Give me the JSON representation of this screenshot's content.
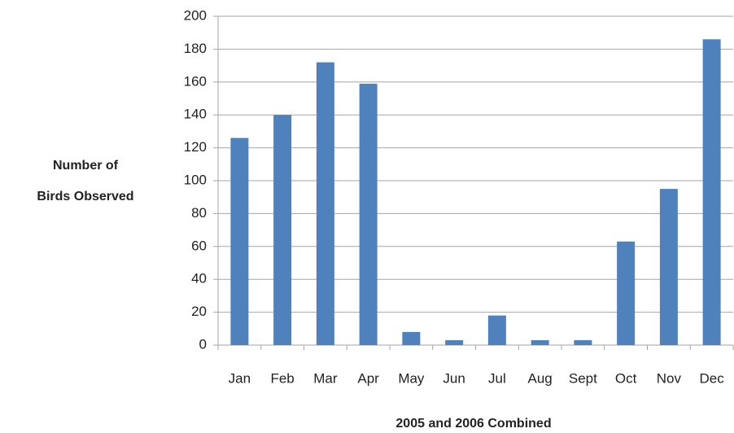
{
  "chart_data": {
    "type": "bar",
    "x_label": "2005 and 2006 Combined",
    "y_label": [
      "Number of",
      "Birds Observed"
    ],
    "categories": [
      "Jan",
      "Feb",
      "Mar",
      "Apr",
      "May",
      "Jun",
      "Jul",
      "Aug",
      "Sept",
      "Oct",
      "Nov",
      "Dec"
    ],
    "values": [
      126,
      140,
      172,
      159,
      8,
      3,
      18,
      3,
      3,
      63,
      95,
      186
    ],
    "color": "#4f81bd",
    "ylim": [
      0,
      200
    ],
    "yticks": [
      0,
      20,
      40,
      60,
      80,
      100,
      120,
      140,
      160,
      180,
      200
    ],
    "grid": true
  }
}
